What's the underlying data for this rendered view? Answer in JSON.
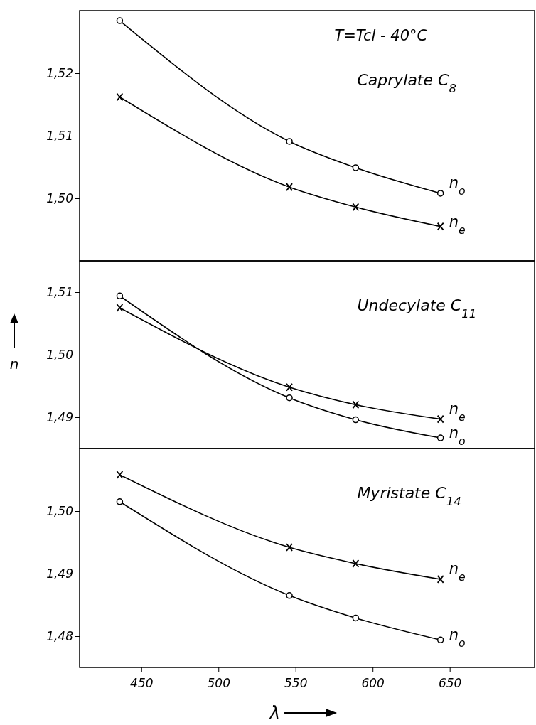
{
  "chart_data": [
    {
      "type": "line",
      "title": "Caprylate C$_{8}$",
      "annotations": [
        "T=Tcl - 40°C"
      ],
      "x": [
        436,
        546,
        589,
        644
      ],
      "xlim": [
        410,
        705
      ],
      "xticks": [
        450,
        500,
        550,
        600,
        650
      ],
      "ylim": [
        1.49,
        1.53
      ],
      "yticks": [
        {
          "value": 1.5,
          "label": "1,50"
        },
        {
          "value": 1.51,
          "label": "1,51"
        },
        {
          "value": 1.52,
          "label": "1,52"
        }
      ],
      "tick_labels": "y",
      "series": [
        {
          "name": "n$_{o}$",
          "color": "#000000",
          "marker": "circle",
          "values": [
            1.5284,
            1.5091,
            1.5049,
            1.5008
          ]
        },
        {
          "name": "n$_{e}$",
          "color": "#000000",
          "marker": "cross",
          "values": [
            1.5162,
            1.5018,
            1.4986,
            1.4955
          ]
        }
      ]
    },
    {
      "type": "line",
      "title": "Undecylate C$_{11}$",
      "ylabel": "n",
      "x": [
        436,
        546,
        589,
        644
      ],
      "xlim": [
        410,
        705
      ],
      "xticks": [
        450,
        500,
        550,
        600,
        650
      ],
      "ylim": [
        1.485,
        1.515
      ],
      "yticks": [
        {
          "value": 1.49,
          "label": "1,49"
        },
        {
          "value": 1.5,
          "label": "1,50"
        },
        {
          "value": 1.51,
          "label": "1,51"
        }
      ],
      "tick_labels": "y",
      "series": [
        {
          "name": "n$_{o}$",
          "color": "#000000",
          "marker": "circle",
          "values": [
            1.5094,
            1.4931,
            1.4896,
            1.4867
          ]
        },
        {
          "name": "n$_{e}$",
          "color": "#000000",
          "marker": "cross",
          "values": [
            1.5075,
            1.4948,
            1.492,
            1.4897
          ]
        }
      ]
    },
    {
      "type": "line",
      "title": "Myristate C$_{14}$",
      "xlabel": "λ",
      "x": [
        436,
        546,
        589,
        644
      ],
      "xlim": [
        410,
        705
      ],
      "xticks": [
        450,
        500,
        550,
        600,
        650
      ],
      "ylim": [
        1.475,
        1.51
      ],
      "yticks": [
        {
          "value": 1.48,
          "label": "1,48"
        },
        {
          "value": 1.49,
          "label": "1,49"
        },
        {
          "value": 1.5,
          "label": "1,50"
        }
      ],
      "series": [
        {
          "name": "n$_{e}$",
          "color": "#000000",
          "marker": "cross",
          "values": [
            1.5058,
            1.4942,
            1.4916,
            1.4891
          ]
        },
        {
          "name": "n$_{o}$",
          "color": "#000000",
          "marker": "circle",
          "values": [
            1.5015,
            1.4865,
            1.4829,
            1.4794
          ]
        }
      ]
    }
  ]
}
